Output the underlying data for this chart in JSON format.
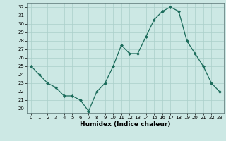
{
  "title": "",
  "xlabel": "Humidex (Indice chaleur)",
  "x": [
    0,
    1,
    2,
    3,
    4,
    5,
    6,
    7,
    8,
    9,
    10,
    11,
    12,
    13,
    14,
    15,
    16,
    17,
    18,
    19,
    20,
    21,
    22,
    23
  ],
  "y": [
    25,
    24,
    23,
    22.5,
    21.5,
    21.5,
    21,
    19.7,
    22,
    23,
    25,
    27.5,
    26.5,
    26.5,
    28.5,
    30.5,
    31.5,
    32,
    31.5,
    28,
    26.5,
    25,
    23,
    22
  ],
  "line_color": "#1a6b5a",
  "marker": "D",
  "marker_size": 2.0,
  "bg_color": "#cce8e4",
  "grid_color": "#aacfca",
  "ylim": [
    19.5,
    32.5
  ],
  "yticks": [
    20,
    21,
    22,
    23,
    24,
    25,
    26,
    27,
    28,
    29,
    30,
    31,
    32
  ],
  "xticks": [
    0,
    1,
    2,
    3,
    4,
    5,
    6,
    7,
    8,
    9,
    10,
    11,
    12,
    13,
    14,
    15,
    16,
    17,
    18,
    19,
    20,
    21,
    22,
    23
  ],
  "tick_fontsize": 5.0,
  "xlabel_fontsize": 6.5,
  "line_width": 0.9
}
